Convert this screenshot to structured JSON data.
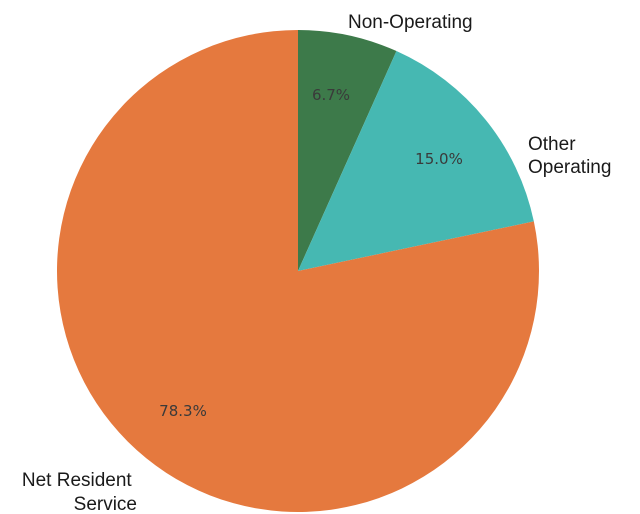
{
  "chart_data": {
    "type": "pie",
    "start_angle_deg": 90,
    "direction": "clockwise",
    "slices": [
      {
        "label": "Non-Operating",
        "value": 6.7,
        "pct_label": "6.7%",
        "color": "#3d7a4a"
      },
      {
        "label": "Other Operating",
        "value": 15.0,
        "pct_label": "15.0%",
        "color": "#46b8b2"
      },
      {
        "label": "Net Resident Service",
        "value": 78.3,
        "pct_label": "78.3%",
        "color": "#e5793e"
      }
    ]
  }
}
